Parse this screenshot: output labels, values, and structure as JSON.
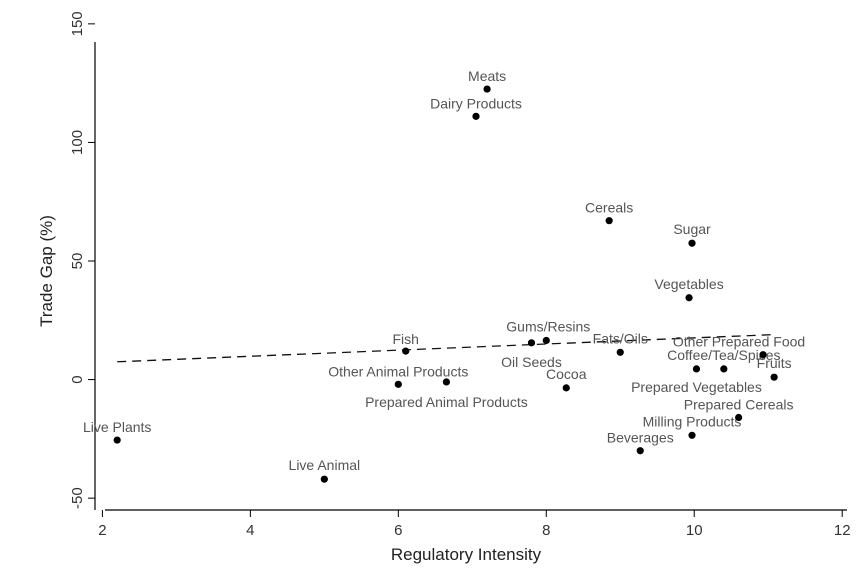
{
  "chart_data": {
    "type": "scatter",
    "title": "",
    "xlabel": "Regulatory Intensity",
    "ylabel": "Trade Gap (%)",
    "xlim": [
      1.9,
      12.2
    ],
    "ylim": [
      -55,
      155
    ],
    "xticks": [
      "2",
      "4",
      "6",
      "8",
      "10",
      "12"
    ],
    "yticks": [
      "-50",
      "0",
      "50",
      "100",
      "150"
    ],
    "grid": false,
    "legend": "none",
    "points": [
      {
        "label": "Live Plants",
        "x": 2.2,
        "y": -25.5
      },
      {
        "label": "Live Animal",
        "x": 5.0,
        "y": -42
      },
      {
        "label": "Fish",
        "x": 6.1,
        "y": 12
      },
      {
        "label": "Other Animal Products",
        "x": 6.0,
        "y": -2
      },
      {
        "label": "Prepared Animal Products",
        "x": 6.65,
        "y": -1
      },
      {
        "label": "Dairy Products",
        "x": 7.05,
        "y": 111
      },
      {
        "label": "Meats",
        "x": 7.2,
        "y": 122.5
      },
      {
        "label": "Gums/Resins",
        "x": 8.0,
        "y": 16.5
      },
      {
        "label": "Oil Seeds",
        "x": 7.8,
        "y": 15.5
      },
      {
        "label": "Cocoa",
        "x": 8.27,
        "y": -3.5
      },
      {
        "label": "Cereals",
        "x": 8.85,
        "y": 67
      },
      {
        "label": "Fats/Oils",
        "x": 9.0,
        "y": 11.5
      },
      {
        "label": "Beverages",
        "x": 9.27,
        "y": -30
      },
      {
        "label": "Vegetables",
        "x": 9.93,
        "y": 34.5
      },
      {
        "label": "Sugar",
        "x": 9.97,
        "y": 57.5
      },
      {
        "label": "Milling Products",
        "x": 9.97,
        "y": -23.5
      },
      {
        "label": "Prepared Vegetables",
        "x": 10.03,
        "y": 4.5
      },
      {
        "label": "Coffee/Tea/Spices",
        "x": 10.4,
        "y": 4.5
      },
      {
        "label": "Prepared Cereals",
        "x": 10.6,
        "y": -16
      },
      {
        "label": "Other Prepared Food",
        "x": 10.93,
        "y": 10.5
      },
      {
        "label": "Fruits",
        "x": 11.08,
        "y": 1
      }
    ],
    "fit_line": {
      "style": "dashed",
      "x": [
        2.2,
        11.1
      ],
      "y": [
        7.5,
        19
      ]
    }
  },
  "colors": {
    "point": "#000000",
    "fit_line": "#111111",
    "axis": "#000000",
    "text": "#444444"
  }
}
